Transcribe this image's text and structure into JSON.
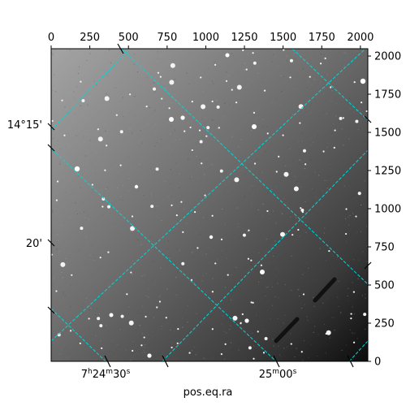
{
  "figure": {
    "xlabel": "pos.eq.ra",
    "pixel_x_ticks": [
      "0",
      "250",
      "500",
      "750",
      "1000",
      "1250",
      "1500",
      "1750",
      "2000"
    ],
    "pixel_y_ticks": [
      "0",
      "250",
      "500",
      "750",
      "1000",
      "1250",
      "1500",
      "1750",
      "2000"
    ],
    "ra_ticks": [
      {
        "h": "7",
        "hs": "h",
        "m": "24",
        "ms": "m",
        "s": "30",
        "ss": "s"
      },
      {
        "h": "",
        "hs": "",
        "m": "25",
        "ms": "m",
        "s": "00",
        "ss": "s"
      }
    ],
    "dec_ticks": [
      "14°15'",
      "20'"
    ],
    "grid_color": "#00d7d7",
    "image_description_colors": {
      "sky_dark": "#101010",
      "sky_light": "#9a9a9a"
    }
  }
}
